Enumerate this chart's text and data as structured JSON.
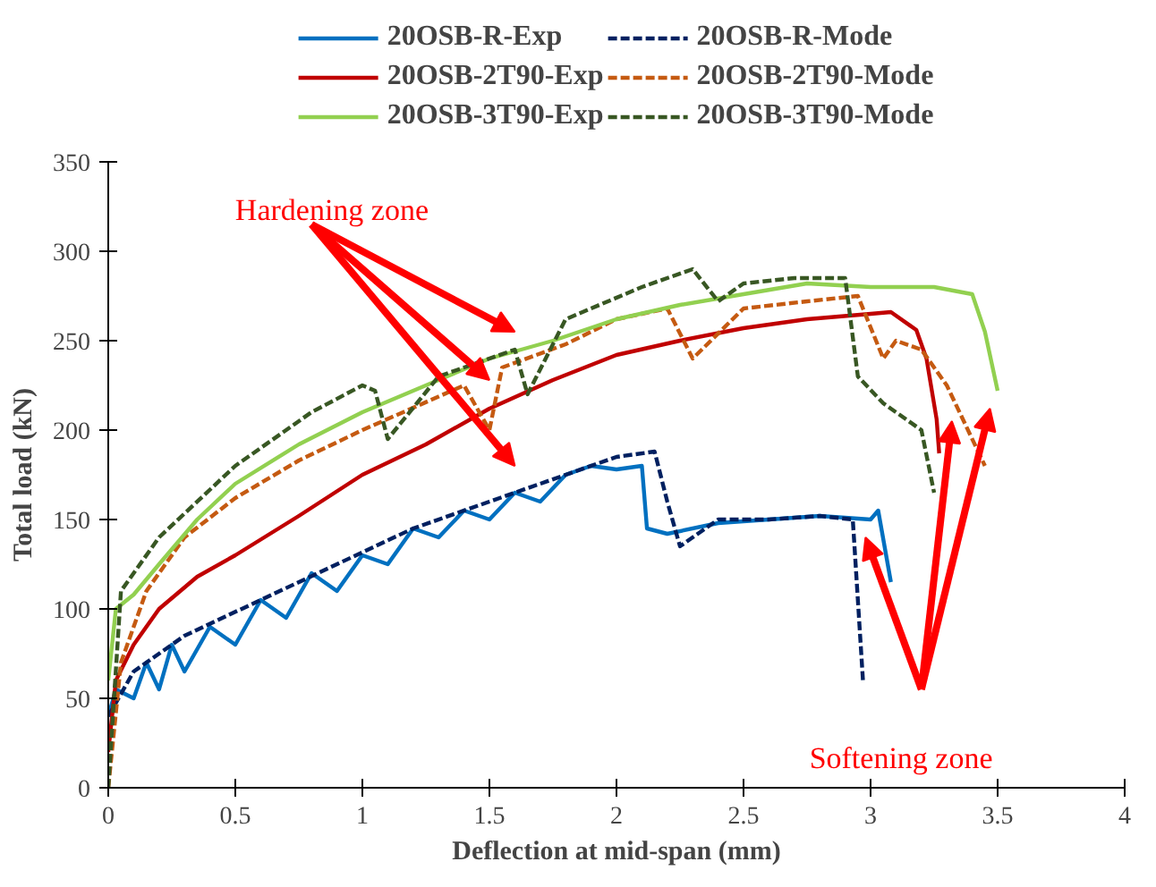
{
  "chart_data": {
    "type": "line",
    "xlabel": "Deflection at mid-span (mm)",
    "ylabel": "Total load (kN)",
    "xlim": [
      0,
      4
    ],
    "xticks": [
      0,
      0.5,
      1,
      1.5,
      2,
      2.5,
      3,
      3.5,
      4
    ],
    "ylim": [
      0,
      350
    ],
    "yticks": [
      0,
      50,
      100,
      150,
      200,
      250,
      300,
      350
    ],
    "grid": false,
    "legend": "top",
    "annotations": [
      "Hardening zone",
      "Softening zone"
    ],
    "series": [
      {
        "name": "20OSB-R-Exp",
        "color": "#0070c0",
        "line_style": "solid",
        "x": [
          0,
          0.03,
          0.1,
          0.15,
          0.2,
          0.25,
          0.3,
          0.4,
          0.5,
          0.6,
          0.7,
          0.8,
          0.9,
          1.0,
          1.1,
          1.2,
          1.3,
          1.4,
          1.5,
          1.6,
          1.7,
          1.8,
          1.9,
          2.0,
          2.1,
          2.12,
          2.2,
          2.4,
          2.6,
          2.8,
          3.0,
          3.03,
          3.08
        ],
        "values": [
          40,
          55,
          50,
          70,
          55,
          80,
          65,
          90,
          80,
          105,
          95,
          120,
          110,
          130,
          125,
          145,
          140,
          155,
          150,
          165,
          160,
          175,
          180,
          178,
          180,
          145,
          142,
          148,
          150,
          152,
          150,
          155,
          115
        ]
      },
      {
        "name": "20OSB-R-Mode",
        "color": "#002060",
        "line_style": "dashed",
        "x": [
          0,
          0.1,
          0.3,
          0.6,
          0.9,
          1.2,
          1.5,
          1.8,
          2.0,
          2.15,
          2.2,
          2.25,
          2.4,
          2.6,
          2.8,
          2.93,
          2.97
        ],
        "values": [
          40,
          65,
          85,
          105,
          125,
          145,
          160,
          175,
          185,
          188,
          160,
          135,
          150,
          150,
          152,
          150,
          60
        ]
      },
      {
        "name": "20OSB-2T90-Exp",
        "color": "#c00000",
        "line_style": "solid",
        "x": [
          0,
          0.03,
          0.1,
          0.2,
          0.35,
          0.5,
          0.75,
          1.0,
          1.25,
          1.5,
          1.75,
          2.0,
          2.25,
          2.5,
          2.75,
          3.0,
          3.08,
          3.18,
          3.22,
          3.26,
          3.27
        ],
        "values": [
          20,
          60,
          80,
          100,
          118,
          130,
          152,
          175,
          192,
          212,
          228,
          242,
          250,
          257,
          262,
          265,
          266,
          256,
          240,
          206,
          187
        ]
      },
      {
        "name": "20OSB-2T90-Mode",
        "color": "#c55a11",
        "line_style": "dashed",
        "x": [
          0,
          0.05,
          0.15,
          0.3,
          0.5,
          0.75,
          1.0,
          1.4,
          1.5,
          1.55,
          1.8,
          2.0,
          2.2,
          2.3,
          2.5,
          2.75,
          2.95,
          3.05,
          3.1,
          3.2,
          3.3,
          3.45
        ],
        "values": [
          0,
          70,
          110,
          140,
          162,
          183,
          200,
          225,
          200,
          235,
          248,
          262,
          268,
          240,
          268,
          272,
          275,
          240,
          250,
          245,
          225,
          180
        ]
      },
      {
        "name": "20OSB-3T90-Exp",
        "color": "#92d050",
        "line_style": "solid",
        "x": [
          0,
          0.03,
          0.1,
          0.2,
          0.35,
          0.5,
          0.75,
          1.0,
          1.25,
          1.5,
          1.75,
          2.0,
          2.25,
          2.5,
          2.75,
          3.0,
          3.25,
          3.4,
          3.45,
          3.5
        ],
        "values": [
          60,
          100,
          108,
          125,
          150,
          170,
          192,
          210,
          225,
          240,
          250,
          262,
          270,
          276,
          282,
          280,
          280,
          276,
          255,
          222
        ]
      },
      {
        "name": "20OSB-3T90-Mode",
        "color": "#385723",
        "line_style": "dashed",
        "x": [
          0,
          0.05,
          0.2,
          0.5,
          0.8,
          1.0,
          1.05,
          1.1,
          1.3,
          1.6,
          1.65,
          1.8,
          2.1,
          2.3,
          2.4,
          2.5,
          2.7,
          2.9,
          2.95,
          3.05,
          3.2,
          3.25
        ],
        "values": [
          0,
          110,
          140,
          180,
          210,
          225,
          222,
          195,
          230,
          245,
          220,
          262,
          280,
          290,
          272,
          282,
          285,
          285,
          230,
          215,
          200,
          165
        ]
      }
    ]
  }
}
